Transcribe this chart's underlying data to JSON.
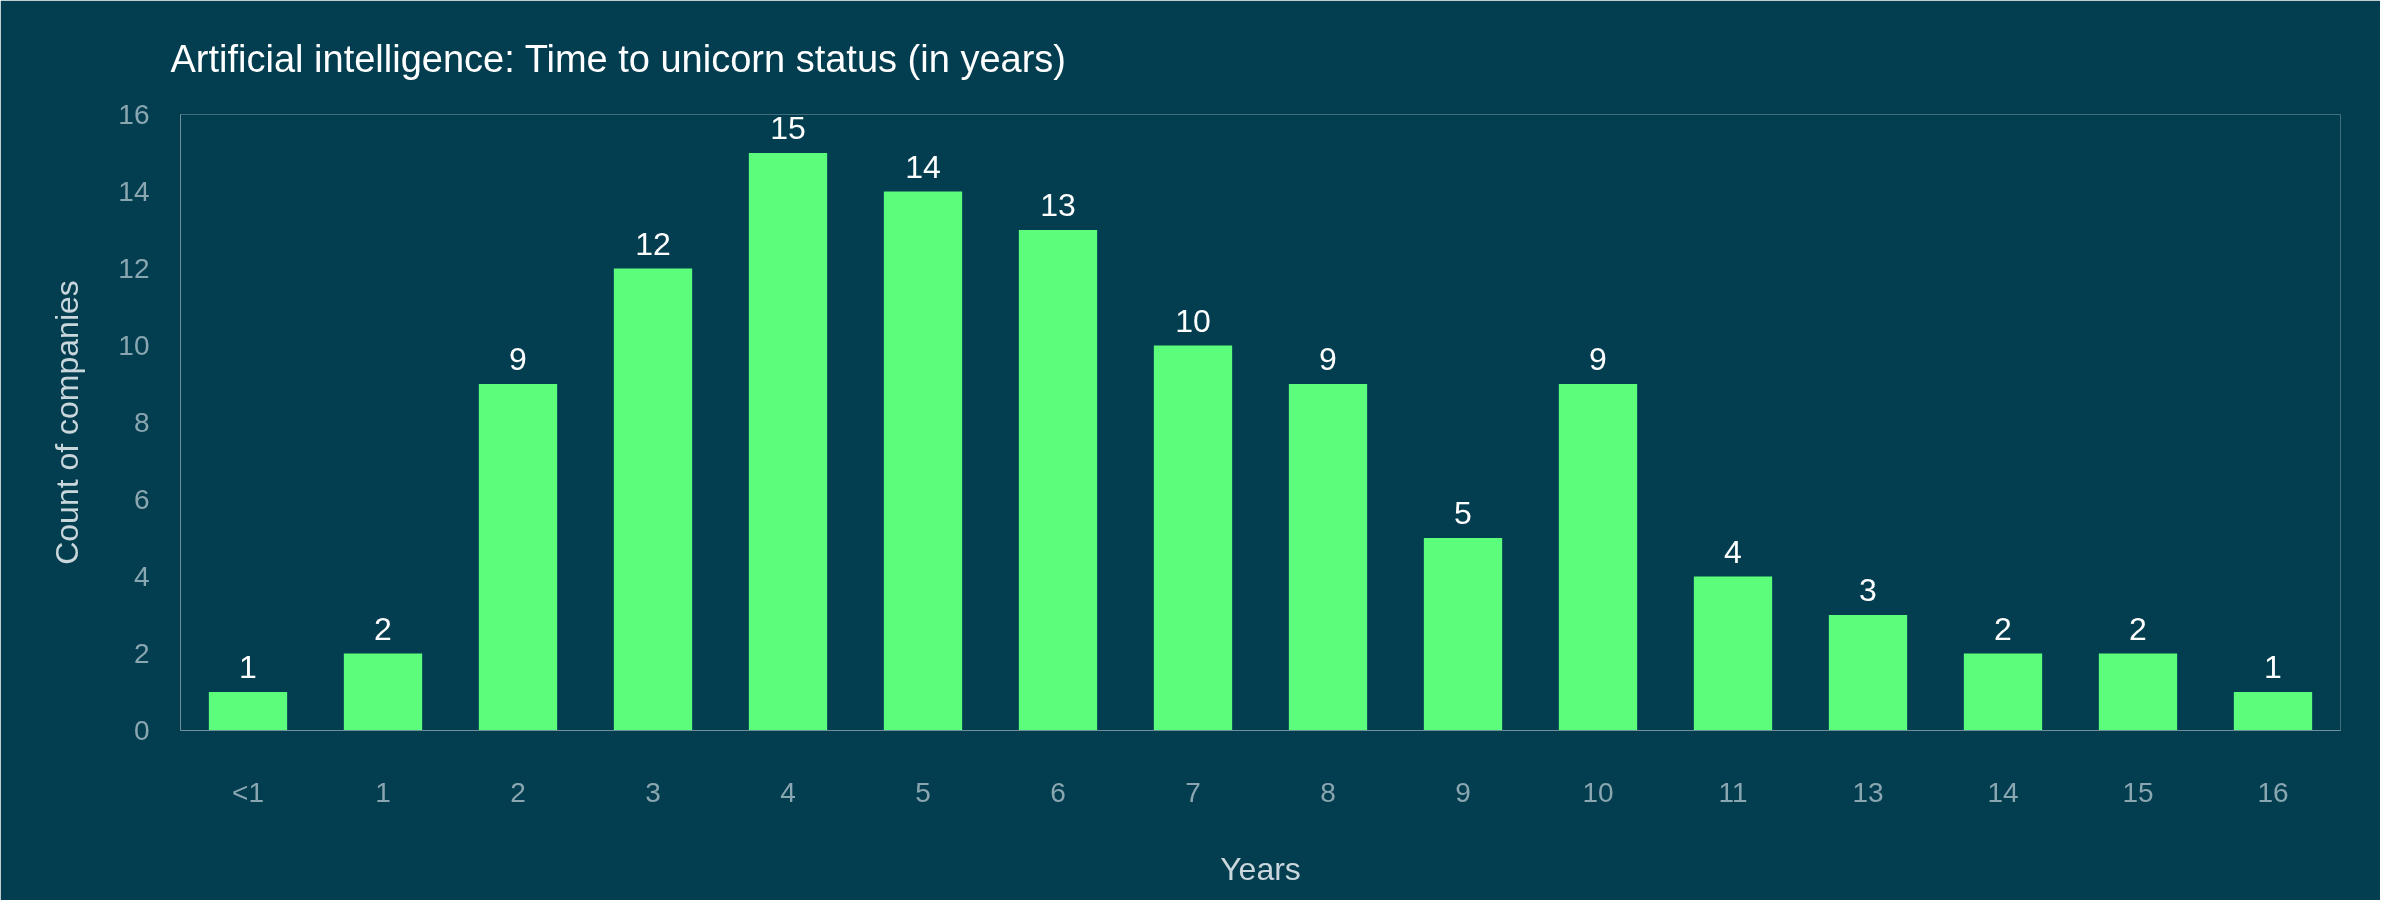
{
  "chart_data": {
    "type": "bar",
    "title": "Artificial intelligence: Time to unicorn status (in years)",
    "xlabel": "Years",
    "ylabel": "Count of companies",
    "categories": [
      "<1",
      "1",
      "2",
      "3",
      "4",
      "5",
      "6",
      "7",
      "8",
      "9",
      "10",
      "11",
      "13",
      "14",
      "15",
      "16"
    ],
    "values": [
      1,
      2,
      9,
      12,
      15,
      14,
      13,
      10,
      9,
      5,
      9,
      4,
      3,
      2,
      2,
      1
    ],
    "color": "#5bfd7b",
    "ylim": [
      0,
      16
    ],
    "yticks": [
      0,
      2,
      4,
      6,
      8,
      10,
      12,
      14,
      16
    ],
    "grid": false,
    "data_labels": true
  }
}
